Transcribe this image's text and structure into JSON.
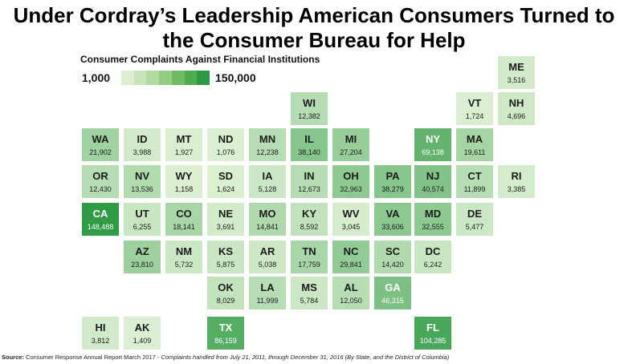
{
  "title_line1": "Under Cordray’s Leadership American Consumers Turned to",
  "title_line2": "the Consumer Bureau for Help",
  "legend": {
    "title": "Consumer Complaints Against Financial Institutions",
    "min_label": "1,000",
    "max_label": "150,000",
    "colors": [
      "#dcefd2",
      "#c9e6bb",
      "#b1dba0",
      "#92cc81",
      "#6fbb63",
      "#4eab4e",
      "#2f9a44"
    ]
  },
  "source": {
    "label": "Source:",
    "text": " Consumer Response  Annual Report March 2017 - ",
    "italic": "Complaints  handled from July 21, 2011, through December 31, 2016 (By State, and the District of Columbia)"
  },
  "states": [
    {
      "abbr": "ME",
      "value": 3516,
      "label": "3,516",
      "row": 0,
      "col": 10
    },
    {
      "abbr": "WI",
      "value": 12382,
      "label": "12,382",
      "row": 1,
      "col": 5
    },
    {
      "abbr": "VT",
      "value": 1724,
      "label": "1,724",
      "row": 1,
      "col": 9
    },
    {
      "abbr": "NH",
      "value": 4696,
      "label": "4,696",
      "row": 1,
      "col": 10
    },
    {
      "abbr": "WA",
      "value": 21902,
      "label": "21,902",
      "row": 2,
      "col": 0
    },
    {
      "abbr": "ID",
      "value": 3988,
      "label": "3,988",
      "row": 2,
      "col": 1
    },
    {
      "abbr": "MT",
      "value": 1927,
      "label": "1,927",
      "row": 2,
      "col": 2
    },
    {
      "abbr": "ND",
      "value": 1076,
      "label": "1,076",
      "row": 2,
      "col": 3
    },
    {
      "abbr": "MN",
      "value": 12238,
      "label": "12,238",
      "row": 2,
      "col": 4
    },
    {
      "abbr": "IL",
      "value": 38140,
      "label": "38,140",
      "row": 2,
      "col": 5
    },
    {
      "abbr": "MI",
      "value": 27204,
      "label": "27,204",
      "row": 2,
      "col": 6
    },
    {
      "abbr": "NY",
      "value": 69138,
      "label": "69,138",
      "row": 2,
      "col": 8
    },
    {
      "abbr": "MA",
      "value": 19611,
      "label": "19,611",
      "row": 2,
      "col": 9
    },
    {
      "abbr": "OR",
      "value": 12430,
      "label": "12,430",
      "row": 3,
      "col": 0
    },
    {
      "abbr": "NV",
      "value": 13536,
      "label": "13,536",
      "row": 3,
      "col": 1
    },
    {
      "abbr": "WY",
      "value": 1158,
      "label": "1,158",
      "row": 3,
      "col": 2
    },
    {
      "abbr": "SD",
      "value": 1624,
      "label": "1,624",
      "row": 3,
      "col": 3
    },
    {
      "abbr": "IA",
      "value": 5128,
      "label": "5,128",
      "row": 3,
      "col": 4
    },
    {
      "abbr": "IN",
      "value": 12673,
      "label": "12,673",
      "row": 3,
      "col": 5
    },
    {
      "abbr": "OH",
      "value": 32963,
      "label": "32,963",
      "row": 3,
      "col": 6
    },
    {
      "abbr": "PA",
      "value": 38279,
      "label": "38,279",
      "row": 3,
      "col": 7
    },
    {
      "abbr": "NJ",
      "value": 40574,
      "label": "40,574",
      "row": 3,
      "col": 8
    },
    {
      "abbr": "CT",
      "value": 11899,
      "label": "11,899",
      "row": 3,
      "col": 9
    },
    {
      "abbr": "RI",
      "value": 3385,
      "label": "3,385",
      "row": 3,
      "col": 10
    },
    {
      "abbr": "CA",
      "value": 148488,
      "label": "148,488",
      "row": 4,
      "col": 0
    },
    {
      "abbr": "UT",
      "value": 6255,
      "label": "6,255",
      "row": 4,
      "col": 1
    },
    {
      "abbr": "CO",
      "value": 18141,
      "label": "18,141",
      "row": 4,
      "col": 2
    },
    {
      "abbr": "NE",
      "value": 3691,
      "label": "3,691",
      "row": 4,
      "col": 3
    },
    {
      "abbr": "MO",
      "value": 14841,
      "label": "14,841",
      "row": 4,
      "col": 4
    },
    {
      "abbr": "KY",
      "value": 8592,
      "label": "8,592",
      "row": 4,
      "col": 5
    },
    {
      "abbr": "WV",
      "value": 3045,
      "label": "3,045",
      "row": 4,
      "col": 6
    },
    {
      "abbr": "VA",
      "value": 33606,
      "label": "33,606",
      "row": 4,
      "col": 7
    },
    {
      "abbr": "MD",
      "value": 32555,
      "label": "32,555",
      "row": 4,
      "col": 8
    },
    {
      "abbr": "DE",
      "value": 5477,
      "label": "5,477",
      "row": 4,
      "col": 9
    },
    {
      "abbr": "AZ",
      "value": 23810,
      "label": "23,810",
      "row": 5,
      "col": 1
    },
    {
      "abbr": "NM",
      "value": 5732,
      "label": "5,732",
      "row": 5,
      "col": 2
    },
    {
      "abbr": "KS",
      "value": 5875,
      "label": "5,875",
      "row": 5,
      "col": 3
    },
    {
      "abbr": "AR",
      "value": 5038,
      "label": "5,038",
      "row": 5,
      "col": 4
    },
    {
      "abbr": "TN",
      "value": 17759,
      "label": "17,759",
      "row": 5,
      "col": 5
    },
    {
      "abbr": "NC",
      "value": 29841,
      "label": "29,841",
      "row": 5,
      "col": 6
    },
    {
      "abbr": "SC",
      "value": 14420,
      "label": "14,420",
      "row": 5,
      "col": 7
    },
    {
      "abbr": "DC",
      "value": 6242,
      "label": "6,242",
      "row": 5,
      "col": 8
    },
    {
      "abbr": "OK",
      "value": 8029,
      "label": "8,029",
      "row": 6,
      "col": 3
    },
    {
      "abbr": "LA",
      "value": 11999,
      "label": "11,999",
      "row": 6,
      "col": 4
    },
    {
      "abbr": "MS",
      "value": 5784,
      "label": "5,784",
      "row": 6,
      "col": 5
    },
    {
      "abbr": "AL",
      "value": 12050,
      "label": "12,050",
      "row": 6,
      "col": 6
    },
    {
      "abbr": "GA",
      "value": 46315,
      "label": "46,315",
      "row": 6,
      "col": 7
    },
    {
      "abbr": "HI",
      "value": 3812,
      "label": "3,812",
      "row": 7,
      "col": 0
    },
    {
      "abbr": "AK",
      "value": 1409,
      "label": "1,409",
      "row": 7,
      "col": 1
    },
    {
      "abbr": "TX",
      "value": 86159,
      "label": "86,159",
      "row": 7,
      "col": 3
    },
    {
      "abbr": "FL",
      "value": 104285,
      "label": "104,285",
      "row": 7,
      "col": 8
    }
  ]
}
